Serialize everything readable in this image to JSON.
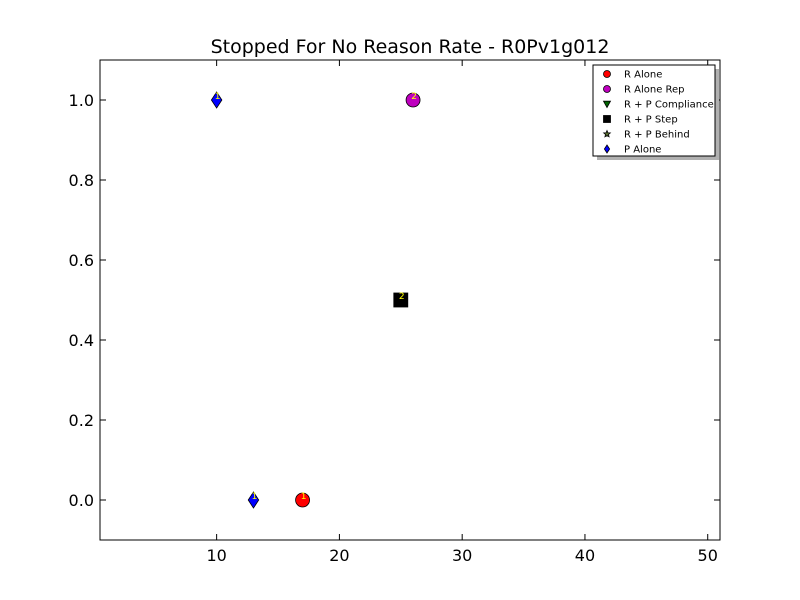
{
  "chart_data": {
    "type": "scatter",
    "title": "Stopped For No Reason Rate - R0Pv1g012",
    "xlabel": "",
    "ylabel": "",
    "xlim": [
      0.5,
      51
    ],
    "ylim": [
      -0.1,
      1.1
    ],
    "x_ticks": [
      10,
      20,
      30,
      40,
      50
    ],
    "y_ticks": [
      0.0,
      0.2,
      0.4,
      0.6,
      0.8,
      1.0
    ],
    "grid": false,
    "legend_position": "top-right",
    "series": [
      {
        "name": "R Alone",
        "marker": "circle",
        "color": "#ff0000",
        "points": [
          {
            "x": 17,
            "y": 0.0,
            "label": "1"
          }
        ]
      },
      {
        "name": "R Alone Rep",
        "marker": "circle",
        "color": "#bf00bf",
        "points": [
          {
            "x": 26,
            "y": 1.0,
            "label": "2"
          }
        ]
      },
      {
        "name": "R + P Compliance",
        "marker": "triangle-down",
        "color": "#006400",
        "points": []
      },
      {
        "name": "R + P Step",
        "marker": "square",
        "color": "#000000",
        "points": [
          {
            "x": 25,
            "y": 0.5,
            "label": "2"
          }
        ]
      },
      {
        "name": "R + P Behind",
        "marker": "star",
        "color": "#556b2f",
        "points": []
      },
      {
        "name": "P Alone",
        "marker": "diamond",
        "color": "#0000ff",
        "points": [
          {
            "x": 10,
            "y": 1.0,
            "label": "1"
          },
          {
            "x": 13,
            "y": 0.0,
            "label": "1"
          }
        ]
      }
    ]
  }
}
